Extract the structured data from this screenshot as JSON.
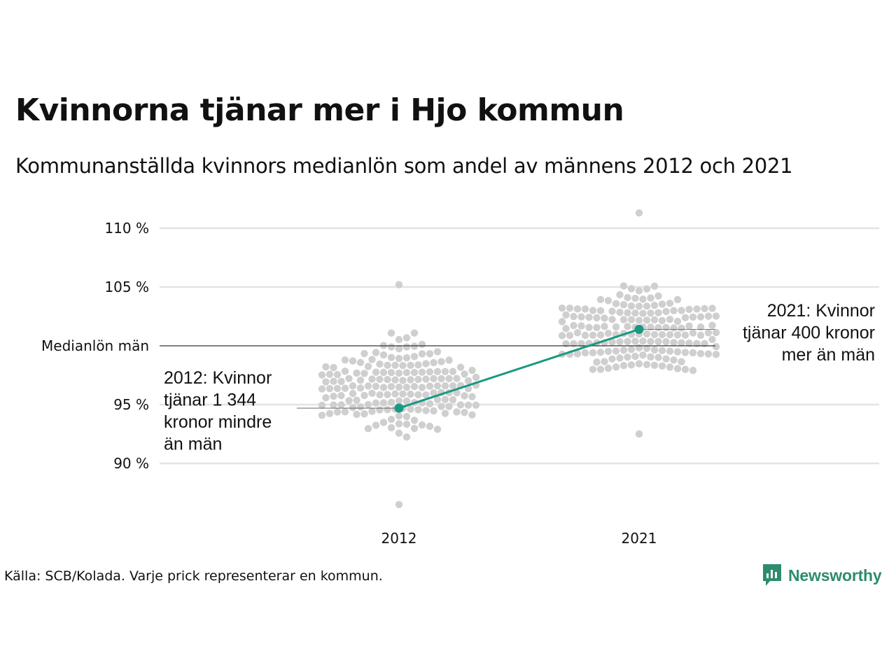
{
  "title": "Kvinnorna tjänar mer i Hjo kommun",
  "subtitle": "Kommunanställda kvinnors medianlön som andel av männens 2012 och 2021",
  "source": "Källa: SCB/Kolada. Varje prick representerar en kommun.",
  "brand": {
    "name": "Newsworthy",
    "color": "#2e8b6f"
  },
  "colors": {
    "highlight": "#1a9882",
    "dots": "#cfcfcf",
    "grid": "#e3e3e3",
    "reference": "#333333"
  },
  "chart_data": {
    "type": "scatter",
    "subtype": "beeswarm",
    "x": [
      "2012",
      "2021"
    ],
    "ylabel": "",
    "ylim": [
      86,
      112
    ],
    "yticks": [
      90,
      95,
      105,
      110
    ],
    "ytick_labels": [
      "90 %",
      "95 %",
      "105 %",
      "110 %"
    ],
    "reference_line": {
      "value": 100,
      "label": "Medianlön män"
    },
    "grid": true,
    "series": [
      {
        "name": "Hjo kommun",
        "values": [
          94.7,
          101.4
        ]
      }
    ],
    "annotations": [
      {
        "x": "2012",
        "lines": [
          "2012: Kvinnor",
          "tjänar 1 344",
          "kronor mindre",
          "än män"
        ]
      },
      {
        "x": "2021",
        "lines": [
          "2021: Kvinnor",
          "tjänar 400 kronor",
          "mer än män"
        ]
      }
    ],
    "distribution": {
      "2012": {
        "min": 86.5,
        "max": 105.2,
        "center": 96.5
      },
      "2021": {
        "min": 92.5,
        "max": 111.3,
        "center": 101.0
      }
    }
  }
}
